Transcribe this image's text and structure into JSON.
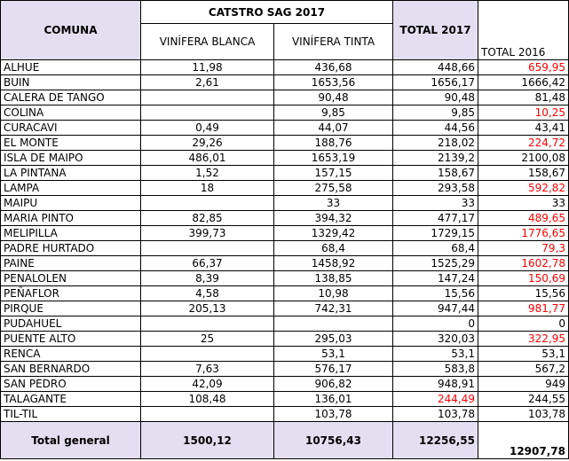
{
  "table": {
    "header": {
      "comuna": "COMUNA",
      "group": "CATSTRO SAG 2017",
      "columns": [
        "VINÍFERA BLANCA",
        "VINÍFERA TINTA"
      ],
      "total_2017": "TOTAL 2017",
      "total_2016": "TOTAL 2016"
    },
    "rows": [
      [
        "ALHUE",
        "11,98",
        "436,68",
        "448,66",
        "659,95"
      ],
      [
        "BUIN",
        "2,61",
        "1653,56",
        "1656,17",
        "1666,42"
      ],
      [
        "CALERA DE TANGO",
        null,
        "90,48",
        "90,48",
        "81,48"
      ],
      [
        "COLINA",
        null,
        "9,85",
        "9,85",
        "10,25"
      ],
      [
        "CURACAVI",
        "0,49",
        "44,07",
        "44,56",
        "43,41"
      ],
      [
        "EL MONTE",
        "29,26",
        "188,76",
        "218,02",
        "224,72"
      ],
      [
        "ISLA DE MAIPO",
        "486,01",
        "1653,19",
        "2139,2",
        "2100,08"
      ],
      [
        "LA PINTANA",
        "1,52",
        "157,15",
        "158,67",
        "158,67"
      ],
      [
        "LAMPA",
        "18",
        "275,58",
        "293,58",
        "592,82"
      ],
      [
        "MAIPU",
        null,
        "33",
        "33",
        "33"
      ],
      [
        "MARIA PINTO",
        "82,85",
        "394,32",
        "477,17",
        "489,65"
      ],
      [
        "MELIPILLA",
        "399,73",
        "1329,42",
        "1729,15",
        "1776,65"
      ],
      [
        "PADRE HURTADO",
        null,
        "68,4",
        "68,4",
        "79,3"
      ],
      [
        "PAINE",
        "66,37",
        "1458,92",
        "1525,29",
        "1602,78"
      ],
      [
        "PENALOLEN",
        "8,39",
        "138,85",
        "147,24",
        "150,69"
      ],
      [
        "PEÑAFLOR",
        "4,58",
        "10,98",
        "15,56",
        "15,56"
      ],
      [
        "PIRQUE",
        "205,13",
        "742,31",
        "947,44",
        "981,77"
      ],
      [
        "PUDAHUEL",
        null,
        null,
        "0",
        "0"
      ],
      [
        "PUENTE ALTO",
        "25",
        "295,03",
        "320,03",
        "322,95"
      ],
      [
        "RENCA",
        null,
        "53,1",
        "53,1",
        "53,1"
      ],
      [
        "SAN BERNARDO",
        "7,63",
        "576,17",
        "583,8",
        "567,2"
      ],
      [
        "SAN PEDRO",
        "42,09",
        "906,82",
        "948,91",
        "949"
      ],
      [
        "TALAGANTE",
        "108,48",
        "136,01",
        "244,49",
        "244,55"
      ],
      [
        "TIL-TIL",
        null,
        "103,78",
        "103,78",
        "103,78"
      ]
    ],
    "footer": [
      "Total general",
      "1500,12",
      "10756,43",
      "12256,55",
      "12907,78"
    ]
  }
}
